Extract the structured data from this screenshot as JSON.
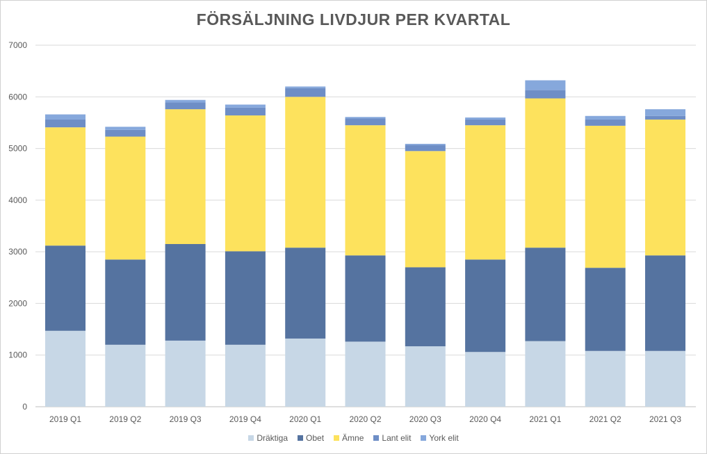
{
  "chart_data": {
    "type": "bar",
    "stacked": true,
    "title": "FÖRSÄLJNING LIVDJUR PER KVARTAL",
    "xlabel": "",
    "ylabel": "",
    "ylim": [
      0,
      7000
    ],
    "yticks": [
      0,
      1000,
      2000,
      3000,
      4000,
      5000,
      6000,
      7000
    ],
    "ytick_labels": [
      "0",
      "1000",
      "2000",
      "3000",
      "4000",
      "5000",
      "6000",
      "7000"
    ],
    "grid": true,
    "legend_position": "bottom",
    "categories": [
      "2019 Q1",
      "2019 Q2",
      "2019 Q3",
      "2019 Q4",
      "2020 Q1",
      "2020 Q2",
      "2020 Q3",
      "2020 Q4",
      "2021 Q1",
      "2021 Q2",
      "2021 Q3"
    ],
    "series": [
      {
        "name": "Dräktiga",
        "color": "#c7d7e6",
        "values": [
          1470,
          1200,
          1280,
          1200,
          1320,
          1260,
          1170,
          1060,
          1270,
          1080,
          1080
        ]
      },
      {
        "name": "Obet",
        "color": "#5573a0",
        "values": [
          1650,
          1650,
          1870,
          1810,
          1760,
          1670,
          1530,
          1790,
          1810,
          1610,
          1850
        ]
      },
      {
        "name": "Ämne",
        "color": "#fde25d",
        "values": [
          2290,
          2380,
          2610,
          2630,
          2920,
          2520,
          2250,
          2600,
          2890,
          2750,
          2630
        ]
      },
      {
        "name": "Lant elit",
        "color": "#6e8ec6",
        "values": [
          150,
          130,
          130,
          150,
          170,
          130,
          120,
          110,
          160,
          120,
          70
        ]
      },
      {
        "name": "York elit",
        "color": "#86a8dc",
        "values": [
          100,
          60,
          50,
          60,
          30,
          30,
          20,
          40,
          190,
          70,
          130
        ]
      }
    ]
  }
}
